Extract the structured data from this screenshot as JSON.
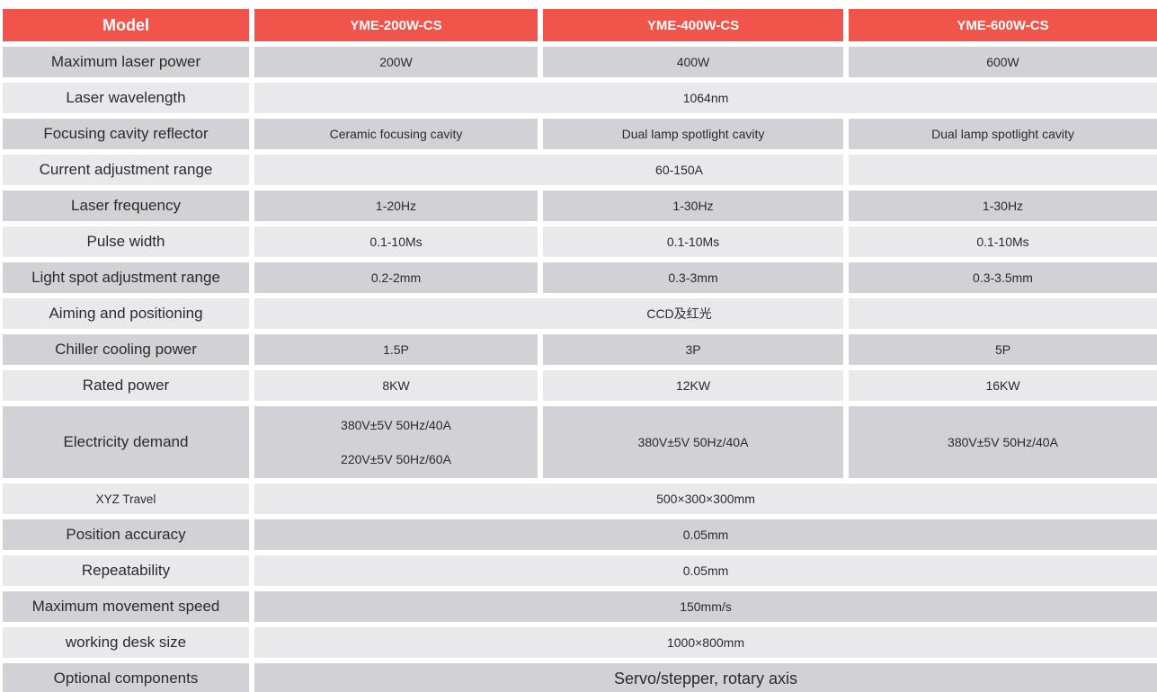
{
  "colors": {
    "header_bg": "#F0544A",
    "header_text": "#FFFFFF",
    "row_dark": "#D2D2D6",
    "row_light": "#E9E9EB",
    "text": "#2B2B2B"
  },
  "table": {
    "header": {
      "model_label": "Model",
      "columns": [
        "YME-200W-CS",
        "YME-400W-CS",
        "YME-600W-CS"
      ]
    },
    "rows": [
      {
        "label": "Maximum laser power",
        "type": "per-column",
        "values": [
          "200W",
          "400W",
          "600W"
        ]
      },
      {
        "label": "Laser wavelength",
        "type": "span-all",
        "value": "1064nm"
      },
      {
        "label": "Focusing cavity reflector",
        "type": "per-column",
        "values": [
          "Ceramic focusing cavity",
          "Dual lamp spotlight cavity",
          "Dual lamp spotlight cavity"
        ]
      },
      {
        "label": "Current adjustment range",
        "type": "span-two",
        "value": "60-150A"
      },
      {
        "label": "Laser frequency",
        "type": "per-column",
        "values": [
          "1-20Hz",
          "1-30Hz",
          "1-30Hz"
        ]
      },
      {
        "label": "Pulse width",
        "type": "per-column",
        "values": [
          "0.1-10Ms",
          "0.1-10Ms",
          "0.1-10Ms"
        ]
      },
      {
        "label": "Light spot adjustment range",
        "type": "per-column",
        "values": [
          "0.2-2mm",
          "0.3-3mm",
          "0.3-3.5mm"
        ]
      },
      {
        "label": "Aiming and positioning",
        "type": "span-two",
        "value": "CCD及红光"
      },
      {
        "label": "Chiller cooling power",
        "type": "per-column",
        "values": [
          "1.5P",
          "3P",
          "5P"
        ]
      },
      {
        "label": "Rated power",
        "type": "per-column",
        "values": [
          "8KW",
          "12KW",
          "16KW"
        ]
      },
      {
        "label": "Electricity demand",
        "type": "per-column",
        "values": [
          [
            "380V±5V 50Hz/40A",
            "220V±5V 50Hz/60A"
          ],
          "380V±5V 50Hz/40A",
          "380V±5V 50Hz/40A"
        ]
      },
      {
        "label": "XYZ Travel",
        "type": "span-all",
        "value": "500×300×300mm",
        "small_label": true
      },
      {
        "label": "Position accuracy",
        "type": "span-all",
        "value": "0.05mm"
      },
      {
        "label": "Repeatability",
        "type": "span-all",
        "value": "0.05mm"
      },
      {
        "label": "Maximum movement speed",
        "type": "span-all",
        "value": "150mm/s"
      },
      {
        "label": "working desk size",
        "type": "span-all",
        "value": "1000×800mm"
      },
      {
        "label": "Optional components",
        "type": "span-all",
        "value": "Servo/stepper, rotary axis",
        "large_value": true
      }
    ]
  }
}
